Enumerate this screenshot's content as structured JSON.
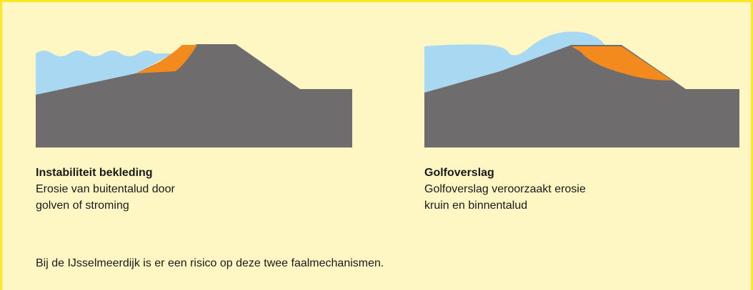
{
  "panels": [
    {
      "title": "Instabiliteit bekleding",
      "description": [
        "Erosie van buitentalud door",
        "golven of stroming"
      ]
    },
    {
      "title": "Golfoverslag",
      "description": [
        "Golfoverslag veroorzaakt erosie",
        "kruin en binnentalud"
      ]
    }
  ],
  "footer": "Bij de IJsselmeerdijk is er een risico op deze twee faalmechanismen."
}
